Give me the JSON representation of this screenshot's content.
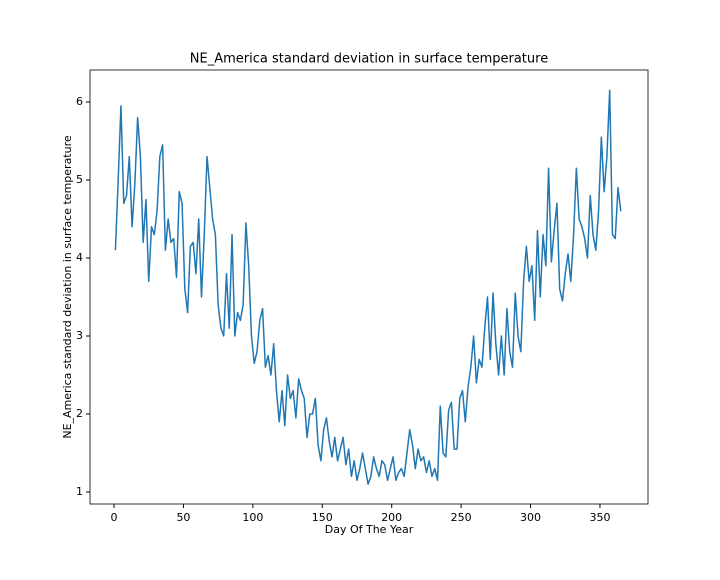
{
  "chart_data": {
    "type": "line",
    "title": "NE_America standard deviation in surface temperature",
    "x_label": "Day Of The Year",
    "y_label": "NE_America standard deviation in surface temperature",
    "color": "#1f77b4",
    "x": [
      1,
      3,
      5,
      7,
      9,
      11,
      13,
      15,
      17,
      19,
      21,
      23,
      25,
      27,
      29,
      31,
      33,
      35,
      37,
      39,
      41,
      43,
      45,
      47,
      49,
      51,
      53,
      55,
      57,
      59,
      61,
      63,
      65,
      67,
      69,
      71,
      73,
      75,
      77,
      79,
      81,
      83,
      85,
      87,
      89,
      91,
      93,
      95,
      97,
      99,
      101,
      103,
      105,
      107,
      109,
      111,
      113,
      115,
      117,
      119,
      121,
      123,
      125,
      127,
      129,
      131,
      133,
      135,
      137,
      139,
      141,
      143,
      145,
      147,
      149,
      151,
      153,
      155,
      157,
      159,
      161,
      163,
      165,
      167,
      169,
      171,
      173,
      175,
      177,
      179,
      181,
      183,
      185,
      187,
      189,
      191,
      193,
      195,
      197,
      199,
      201,
      203,
      205,
      207,
      209,
      211,
      213,
      215,
      217,
      219,
      221,
      223,
      225,
      227,
      229,
      231,
      233,
      235,
      237,
      239,
      241,
      243,
      245,
      247,
      249,
      251,
      253,
      255,
      257,
      259,
      261,
      263,
      265,
      267,
      269,
      271,
      273,
      275,
      277,
      279,
      281,
      283,
      285,
      287,
      289,
      291,
      293,
      295,
      297,
      299,
      301,
      303,
      305,
      307,
      309,
      311,
      313,
      315,
      317,
      319,
      321,
      323,
      325,
      327,
      329,
      331,
      333,
      335,
      337,
      339,
      341,
      343,
      345,
      347,
      349,
      351,
      353,
      355,
      357,
      359,
      361,
      363,
      365
    ],
    "values": [
      4.1,
      5.0,
      5.95,
      4.7,
      4.8,
      5.3,
      4.4,
      4.95,
      5.8,
      5.3,
      4.2,
      4.75,
      3.7,
      4.4,
      4.3,
      4.6,
      5.3,
      5.45,
      4.1,
      4.5,
      4.2,
      4.25,
      3.75,
      4.85,
      4.7,
      3.6,
      3.3,
      4.15,
      4.2,
      3.8,
      4.5,
      3.5,
      4.3,
      5.3,
      4.9,
      4.5,
      4.3,
      3.4,
      3.1,
      3.0,
      3.8,
      3.1,
      4.3,
      3.0,
      3.3,
      3.2,
      3.4,
      4.45,
      3.9,
      3.0,
      2.65,
      2.8,
      3.2,
      3.35,
      2.6,
      2.75,
      2.5,
      2.9,
      2.3,
      1.9,
      2.3,
      1.85,
      2.5,
      2.2,
      2.3,
      1.95,
      2.45,
      2.3,
      2.2,
      1.7,
      2.0,
      2.0,
      2.2,
      1.6,
      1.4,
      1.8,
      1.95,
      1.65,
      1.45,
      1.7,
      1.4,
      1.55,
      1.7,
      1.35,
      1.55,
      1.2,
      1.4,
      1.15,
      1.3,
      1.5,
      1.3,
      1.1,
      1.2,
      1.45,
      1.3,
      1.2,
      1.4,
      1.35,
      1.15,
      1.3,
      1.45,
      1.15,
      1.25,
      1.3,
      1.2,
      1.5,
      1.8,
      1.6,
      1.3,
      1.55,
      1.4,
      1.45,
      1.25,
      1.4,
      1.2,
      1.3,
      1.15,
      2.1,
      1.5,
      1.45,
      2.05,
      2.15,
      1.55,
      1.55,
      2.2,
      2.3,
      1.9,
      2.35,
      2.6,
      3.0,
      2.4,
      2.7,
      2.6,
      3.1,
      3.5,
      2.7,
      3.55,
      2.9,
      2.5,
      3.0,
      2.5,
      3.35,
      2.8,
      2.6,
      3.55,
      3.0,
      2.8,
      3.7,
      4.15,
      3.7,
      3.9,
      3.2,
      4.35,
      3.5,
      4.3,
      3.9,
      5.15,
      3.95,
      4.35,
      4.7,
      3.6,
      3.45,
      3.8,
      4.05,
      3.7,
      4.3,
      5.15,
      4.5,
      4.4,
      4.25,
      4.0,
      4.8,
      4.3,
      4.1,
      4.6,
      5.55,
      4.85,
      5.3,
      6.15,
      4.3,
      4.25,
      4.9,
      4.6
    ],
    "xlim": [
      -17.3,
      384.6
    ],
    "xticks": [
      0,
      50,
      100,
      150,
      200,
      250,
      300,
      350
    ],
    "ylim": [
      0.846,
      6.41
    ],
    "yticks": [
      1,
      2,
      3,
      4,
      5,
      6
    ]
  }
}
